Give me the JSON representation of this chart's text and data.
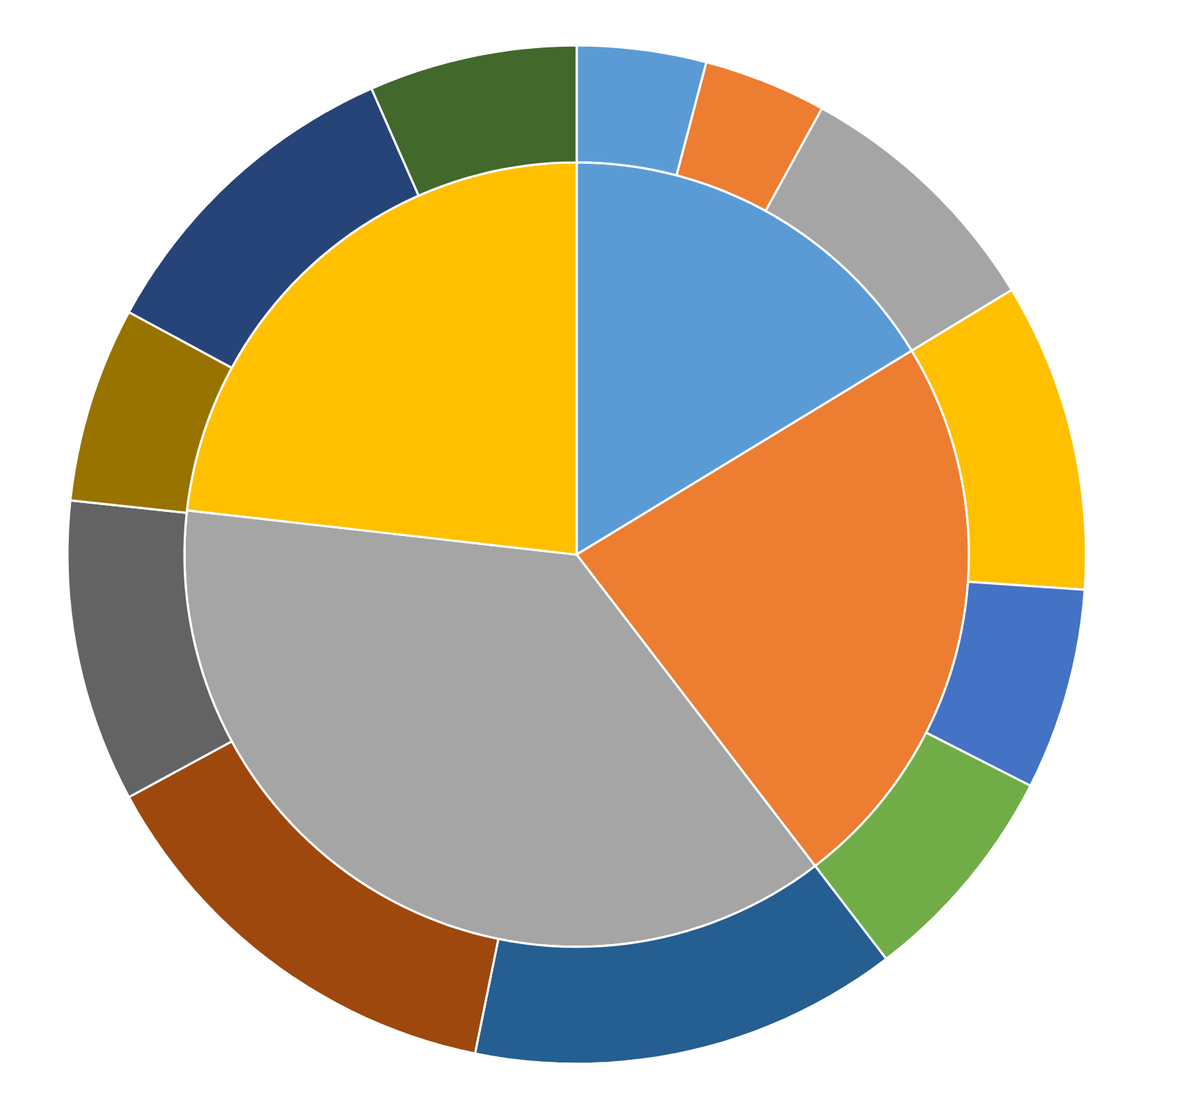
{
  "chart_data": {
    "type": "pie",
    "series": [
      {
        "type": "pie",
        "values": [
          16.3,
          23.3,
          37.2,
          23.2
        ],
        "colors": [
          "#5b9bd5",
          "#ed7d31",
          "#a5a5a5",
          "#ffc000"
        ]
      },
      {
        "type": "donut",
        "values": [
          4.1,
          3.9,
          8.3,
          9.8,
          6.4,
          7.1,
          13.6,
          13.9,
          9.6,
          6.2,
          10.5,
          6.6
        ],
        "colors": [
          "#5b9bd5",
          "#ed7d31",
          "#a5a5a5",
          "#ffc000",
          "#4472c4",
          "#70ad47",
          "#255e91",
          "#9e480e",
          "#636363",
          "#997300",
          "#264478",
          "#43682b"
        ]
      }
    ]
  }
}
